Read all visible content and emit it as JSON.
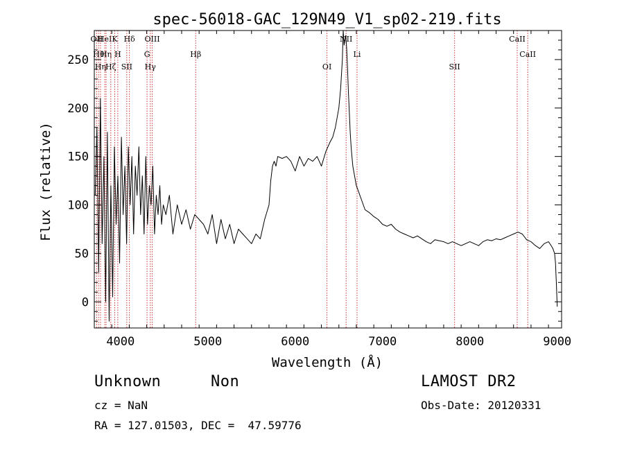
{
  "chart_data": {
    "type": "line",
    "title": "spec-56018-GAC_129N49_V1_sp02-219.fits",
    "xlabel": "Wavelength (Å)",
    "ylabel": "Flux (relative)",
    "xlim": [
      3700,
      9050
    ],
    "ylim": [
      -27,
      280
    ],
    "xticks": [
      4000,
      5000,
      6000,
      7000,
      8000,
      9000
    ],
    "yticks": [
      0,
      50,
      100,
      150,
      200,
      250
    ],
    "grid": false,
    "line_color": "#000000",
    "marker_color": "#cc3333",
    "series": [
      {
        "x": [
          3710,
          3730,
          3750,
          3770,
          3790,
          3810,
          3830,
          3850,
          3870,
          3890,
          3910,
          3930,
          3950,
          3970,
          3990,
          4010,
          4030,
          4050,
          4070,
          4090,
          4110,
          4130,
          4150,
          4170,
          4190,
          4210,
          4230,
          4250,
          4270,
          4290,
          4310,
          4330,
          4350,
          4370,
          4390,
          4410,
          4430,
          4450,
          4470,
          4490,
          4520,
          4560,
          4600,
          4650,
          4700,
          4750,
          4800,
          4850,
          4900,
          4950,
          5000,
          5050,
          5100,
          5150,
          5200,
          5250,
          5300,
          5350,
          5400,
          5450,
          5500,
          5550,
          5600,
          5650,
          5700,
          5720,
          5740,
          5760,
          5780,
          5800,
          5850,
          5900,
          5950,
          6000,
          6050,
          6100,
          6150,
          6200,
          6250,
          6300,
          6350,
          6400,
          6430,
          6460,
          6480,
          6500,
          6520,
          6540,
          6550,
          6560,
          6570,
          6580,
          6590,
          6600,
          6610,
          6620,
          6630,
          6640,
          6650,
          6660,
          6680,
          6700,
          6720,
          6740,
          6760,
          6780,
          6800,
          6850,
          6900,
          6950,
          7000,
          7050,
          7100,
          7150,
          7200,
          7250,
          7300,
          7350,
          7400,
          7450,
          7500,
          7550,
          7600,
          7650,
          7700,
          7750,
          7800,
          7850,
          7900,
          7950,
          8000,
          8050,
          8100,
          8150,
          8200,
          8250,
          8300,
          8350,
          8400,
          8450,
          8500,
          8550,
          8600,
          8650,
          8700,
          8750,
          8800,
          8850,
          8900,
          8930,
          8950,
          8970,
          8980,
          8990,
          9000
        ],
        "y": [
          110,
          180,
          30,
          210,
          60,
          150,
          0,
          175,
          -20,
          120,
          5,
          160,
          80,
          130,
          40,
          170,
          90,
          140,
          60,
          160,
          100,
          150,
          70,
          140,
          110,
          160,
          90,
          130,
          70,
          150,
          80,
          120,
          100,
          140,
          70,
          110,
          90,
          120,
          80,
          100,
          90,
          110,
          70,
          100,
          80,
          95,
          75,
          90,
          85,
          80,
          70,
          90,
          60,
          85,
          65,
          80,
          60,
          75,
          70,
          65,
          60,
          70,
          65,
          85,
          100,
          125,
          140,
          145,
          140,
          150,
          148,
          150,
          145,
          135,
          150,
          140,
          148,
          145,
          150,
          140,
          155,
          165,
          170,
          180,
          190,
          200,
          220,
          250,
          280,
          265,
          270,
          275,
          260,
          240,
          215,
          195,
          175,
          160,
          150,
          140,
          130,
          120,
          115,
          110,
          105,
          100,
          95,
          92,
          88,
          85,
          80,
          78,
          80,
          75,
          72,
          70,
          68,
          66,
          68,
          65,
          62,
          60,
          64,
          63,
          62,
          60,
          62,
          60,
          58,
          60,
          62,
          60,
          58,
          62,
          64,
          63,
          65,
          64,
          66,
          68,
          70,
          72,
          70,
          64,
          62,
          58,
          55,
          60,
          62,
          58,
          55,
          50,
          40,
          20,
          -5
        ]
      }
    ],
    "lines": [
      {
        "x": 3727,
        "label": "OII"
      },
      {
        "x": 3750,
        "label": "Hθ"
      },
      {
        "x": 3771,
        "label": "Hη"
      },
      {
        "x": 3820,
        "label": "HeI"
      },
      {
        "x": 3835,
        "label": "Hη"
      },
      {
        "x": 3889,
        "label": "Hζ"
      },
      {
        "x": 3934,
        "label": "K"
      },
      {
        "x": 3969,
        "label": "H"
      },
      {
        "x": 4072,
        "label": "SII"
      },
      {
        "x": 4102,
        "label": "Hδ"
      },
      {
        "x": 4304,
        "label": "G"
      },
      {
        "x": 4341,
        "label": "Hγ"
      },
      {
        "x": 4363,
        "label": "OIII"
      },
      {
        "x": 4861,
        "label": "Hβ"
      },
      {
        "x": 6364,
        "label": "OI"
      },
      {
        "x": 6583,
        "label": "NII"
      },
      {
        "x": 6708,
        "label": "Li"
      },
      {
        "x": 7825,
        "label": "SII"
      },
      {
        "x": 8542,
        "label": "CaII"
      },
      {
        "x": 8662,
        "label": "CaII"
      }
    ]
  },
  "info": {
    "object_class": "Unknown",
    "subclass": "Non",
    "survey": "LAMOST DR2",
    "cz": "cz = NaN",
    "obs_date": "Obs-Date: 20120331",
    "coords": "RA = 127.01503, DEC =  47.59776"
  }
}
